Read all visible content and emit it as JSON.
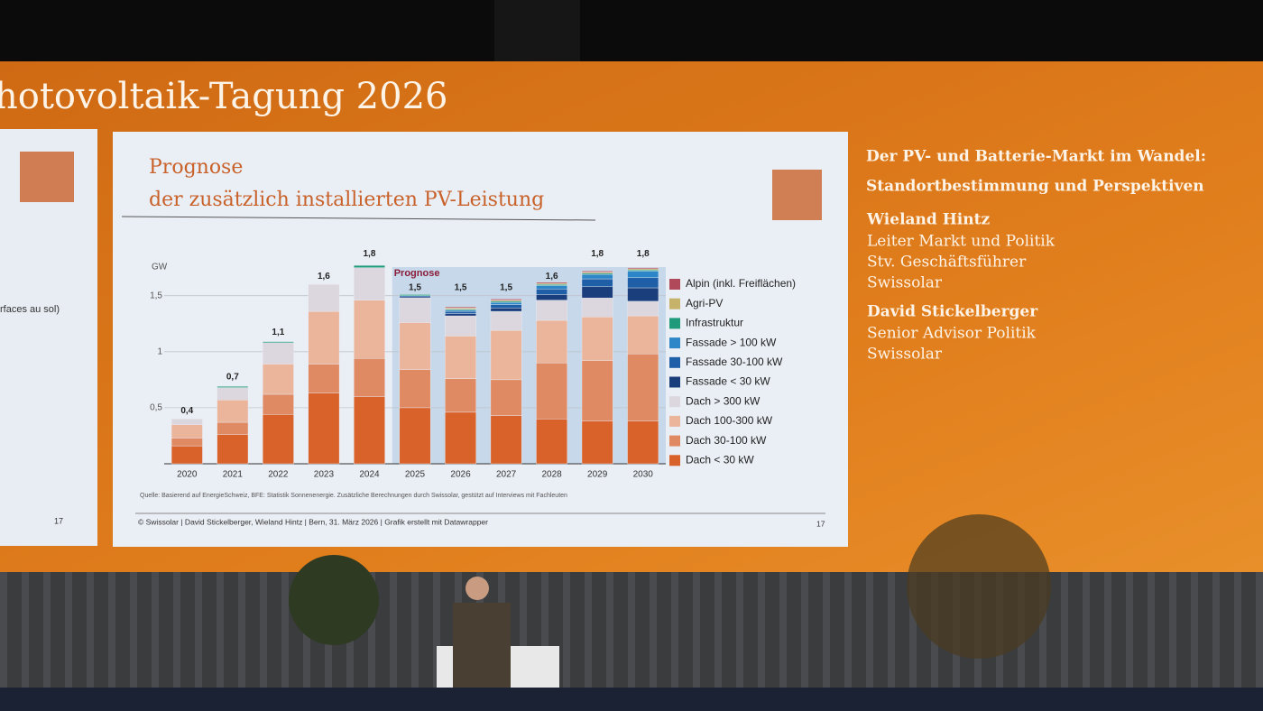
{
  "header": {
    "title": "hotovoltaik-Tagung 2026"
  },
  "left_slide": {
    "text": "rfaces au sol)",
    "page": "17"
  },
  "slide": {
    "source": "Quelle: Basierend auf EnergieSchweiz, BFE: Statistik Sonnenenergie. Zusätzliche Berechnungen durch Swissolar, gestützt auf Interviews mit Fachleuten",
    "footer": "© Swissolar | David Stickelberger, Wieland Hintz |  Bern, 31. März 2026 | Grafik erstellt mit Datawrapper",
    "page": "17"
  },
  "sidebar": {
    "heading": [
      "Der PV- und Batterie-Markt im Wandel:",
      "Standortbestimmung und Perspektiven"
    ],
    "speakers": [
      {
        "name": "Wieland Hintz",
        "roles": [
          "Leiter Markt und Politik",
          "Stv. Geschäftsführer",
          "Swissolar"
        ]
      },
      {
        "name": "David Stickelberger",
        "roles": [
          "Senior Advisor Politik",
          "Swissolar"
        ]
      }
    ]
  },
  "chart_data": {
    "type": "stacked-bar",
    "title": [
      "Prognose",
      "der zusätzlich installierten PV-Leistung"
    ],
    "y_label": "GW",
    "annotation": "Prognose",
    "categories": [
      "2020",
      "2021",
      "2022",
      "2023",
      "2024",
      "2025",
      "2026",
      "2027",
      "2028",
      "2029",
      "2030"
    ],
    "ylim": [
      0,
      1.9
    ],
    "yticks": [
      {
        "value": 0.5,
        "label": "0,5"
      },
      1,
      {
        "value": 1.5,
        "label": "1,5"
      }
    ],
    "grid": true,
    "series": [
      {
        "name": "Dach < 30 kW",
        "color": "#d9622b",
        "values": [
          0.16,
          0.26,
          0.44,
          0.63,
          0.6,
          0.5,
          0.46,
          0.43,
          0.4,
          0.38,
          0.38
        ]
      },
      {
        "name": "Dach 30-100 kW",
        "color": "#e08a63",
        "values": [
          0.07,
          0.11,
          0.18,
          0.26,
          0.34,
          0.34,
          0.3,
          0.32,
          0.5,
          0.54,
          0.6
        ]
      },
      {
        "name": "Dach 100-300 kW",
        "color": "#ebb59c",
        "values": [
          0.12,
          0.2,
          0.27,
          0.47,
          0.52,
          0.42,
          0.38,
          0.44,
          0.38,
          0.39,
          0.34
        ]
      },
      {
        "name": "Dach > 300 kW",
        "color": "#dcd6de",
        "values": [
          0.05,
          0.11,
          0.19,
          0.24,
          0.29,
          0.22,
          0.18,
          0.17,
          0.18,
          0.17,
          0.13
        ]
      },
      {
        "name": "Fassade < 30 kW",
        "color": "#1a3d7c",
        "values": [
          0,
          0,
          0,
          0,
          0,
          0.01,
          0.02,
          0.03,
          0.05,
          0.1,
          0.12
        ]
      },
      {
        "name": "Fassade 30-100 kW",
        "color": "#1f5fa8",
        "values": [
          0,
          0,
          0,
          0,
          0,
          0.01,
          0.02,
          0.03,
          0.05,
          0.07,
          0.09
        ]
      },
      {
        "name": "Fassade > 100 kW",
        "color": "#2d86c8",
        "values": [
          0,
          0,
          0,
          0,
          0,
          0,
          0.01,
          0.02,
          0.03,
          0.04,
          0.06
        ]
      },
      {
        "name": "Infrastruktur",
        "color": "#1f9a7a",
        "values": [
          0,
          0.01,
          0.01,
          0,
          0.02,
          0.01,
          0.01,
          0.01,
          0.01,
          0.01,
          0.01
        ]
      },
      {
        "name": "Agri-PV",
        "color": "#c7b26a",
        "values": [
          0,
          0,
          0,
          0,
          0,
          0,
          0.01,
          0.01,
          0.01,
          0.01,
          0.01
        ]
      },
      {
        "name": "Alpin (inkl. Freiflächen)",
        "color": "#b04a5a",
        "values": [
          0,
          0,
          0,
          0,
          0,
          0,
          0.01,
          0.01,
          0.01,
          0.01,
          0.01
        ]
      }
    ],
    "totals": {
      "values": [
        0.4,
        0.7,
        1.1,
        1.6,
        1.8,
        1.5,
        1.5,
        1.5,
        1.6,
        1.8,
        1.8
      ],
      "value_labels": [
        "0,4",
        "0,7",
        "1,1",
        "1,6",
        "1,8",
        "1,5",
        "1,5",
        "1,5",
        "1,6",
        "1,8",
        "1,8"
      ]
    }
  }
}
